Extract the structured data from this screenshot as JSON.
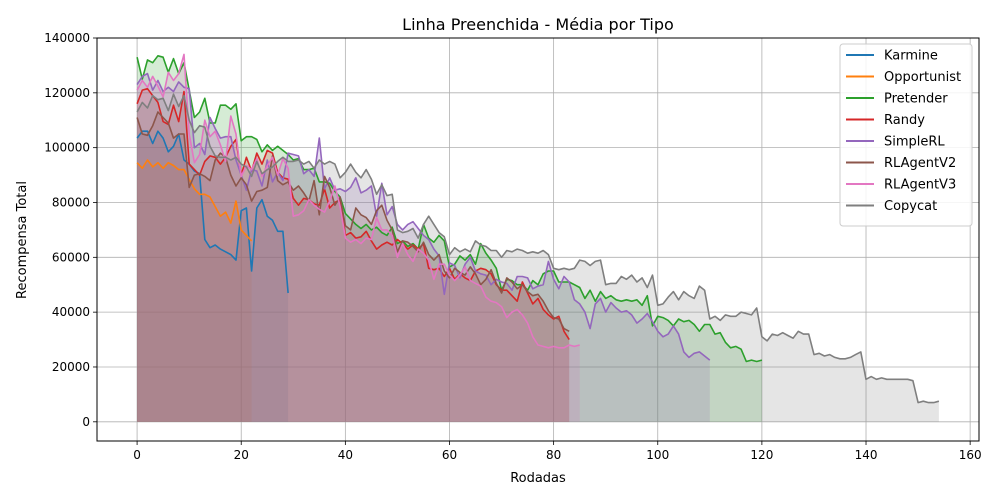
{
  "chart_data": {
    "type": "area",
    "title": "Linha Preenchida - Média por Tipo",
    "xlabel": "Rodadas",
    "ylabel": "Recompensa Total",
    "xlim": [
      -7.7,
      161.7
    ],
    "ylim": [
      -7000,
      140000
    ],
    "xticks": [
      0,
      20,
      40,
      60,
      80,
      100,
      120,
      140,
      160
    ],
    "yticks": [
      0,
      20000,
      40000,
      60000,
      80000,
      100000,
      120000,
      140000
    ],
    "grid": true,
    "legend_position": "upper-right",
    "series": [
      {
        "name": "Karmine",
        "color": "#1f77b4",
        "x_start": 0,
        "values": [
          103500,
          106000,
          106000,
          101500,
          106000,
          103500,
          98500,
          100500,
          105000,
          95500,
          94000,
          91500,
          90500,
          66500,
          63500,
          64500,
          63000,
          62000,
          61000,
          59000,
          77000,
          78000,
          55000,
          78000,
          81000,
          75000,
          73500,
          69500,
          69500,
          47000
        ]
      },
      {
        "name": "Opportunist",
        "color": "#ff7f0e",
        "x_start": 0,
        "values": [
          94500,
          92500,
          95500,
          93000,
          94500,
          92500,
          94500,
          93500,
          92000,
          92000,
          88500,
          85000,
          83000,
          83000,
          82000,
          78500,
          75000,
          76500,
          72500,
          80500,
          70000,
          68000,
          66000
        ]
      },
      {
        "name": "Pretender",
        "color": "#2ca02c",
        "x_start": 0,
        "values": [
          133000,
          125000,
          132000,
          131000,
          133500,
          133000,
          127500,
          132500,
          127000,
          131000,
          121000,
          111000,
          113000,
          118000,
          109000,
          109000,
          115500,
          115500,
          114000,
          116000,
          102500,
          104000,
          104000,
          103000,
          98500,
          101000,
          99000,
          100500,
          99000,
          97500,
          95500,
          96000,
          92000,
          92000,
          92500,
          87500,
          87500,
          87000,
          84000,
          82000,
          76000,
          74000,
          72000,
          70500,
          72000,
          70000,
          71000,
          69000,
          68000,
          71000,
          65000,
          66000,
          64000,
          65000,
          63000,
          72000,
          67000,
          65500,
          68000,
          66000,
          56500,
          57500,
          60500,
          59000,
          61000,
          57500,
          65000,
          61500,
          59000,
          56000,
          48000,
          52000,
          51500,
          50000,
          50000,
          48000,
          51500,
          50000,
          54000,
          55000,
          55000,
          51000,
          51000,
          51000,
          50000,
          49000,
          45000,
          48000,
          44000,
          47500,
          45000,
          46000,
          44500,
          44000,
          44500,
          44000,
          44500,
          42500,
          46000,
          35000,
          38500,
          38000,
          37000,
          35000,
          37500,
          36500,
          37000,
          35500,
          33000,
          35500,
          35500,
          32000,
          32500,
          29000,
          27000,
          27500,
          26500,
          22000,
          22500,
          22000,
          22500
        ]
      },
      {
        "name": "Randy",
        "color": "#d62728",
        "x_start": 0,
        "values": [
          116000,
          121000,
          121500,
          119000,
          116500,
          109500,
          108500,
          115500,
          109500,
          120500,
          94000,
          92000,
          90000,
          95000,
          97000,
          96500,
          94000,
          96500,
          100500,
          103000,
          90000,
          96500,
          91500,
          98000,
          94000,
          99000,
          98000,
          91000,
          89000,
          88500,
          81500,
          79000,
          81500,
          81000,
          79500,
          79000,
          85000,
          78000,
          80000,
          81000,
          68000,
          69000,
          67000,
          67500,
          69500,
          66000,
          63000,
          64500,
          65500,
          64500,
          66500,
          65000,
          63000,
          64500,
          63000,
          65000,
          56000,
          55500,
          56000,
          53000,
          56000,
          52000,
          54000,
          52500,
          51500,
          55000,
          56000,
          55500,
          54000,
          50000,
          48000,
          48000,
          46000,
          44000,
          51000,
          47000,
          43000,
          45000,
          41000,
          39000,
          37500,
          38500,
          33000,
          30000
        ]
      },
      {
        "name": "SimpleRL",
        "color": "#9467bd",
        "x_start": 0,
        "values": [
          123000,
          126000,
          127000,
          121000,
          124500,
          120500,
          122000,
          120500,
          124000,
          122000,
          121500,
          100000,
          101500,
          97500,
          111000,
          107000,
          103500,
          104000,
          104000,
          95500,
          90000,
          84500,
          92000,
          91500,
          86000,
          95500,
          87500,
          91000,
          88000,
          98000,
          97500,
          97000,
          90500,
          92000,
          89500,
          103500,
          85000,
          89000,
          84500,
          85000,
          84000,
          85500,
          89000,
          83500,
          84500,
          86000,
          75000,
          87000,
          75500,
          78500,
          72000,
          70000,
          72000,
          73000,
          70500,
          68000,
          66500,
          63000,
          60500,
          46500,
          58000,
          57000,
          52500,
          57500,
          60000,
          55000,
          54000,
          53500,
          50000,
          52000,
          51000,
          50500,
          48000,
          53000,
          53000,
          52500,
          48500,
          49500,
          50000,
          58500,
          52000,
          48500,
          53000,
          51000,
          44500,
          43000,
          40000,
          34000,
          43000,
          45000,
          40000,
          43500,
          41500,
          40000,
          40500,
          39000,
          36000,
          37500,
          39500,
          36500,
          33000,
          31000,
          32000,
          35000,
          32000,
          25500,
          23500,
          25000,
          25500,
          24000,
          22500
        ]
      },
      {
        "name": "RLAgentV2",
        "color": "#8c564b",
        "x_start": 0,
        "values": [
          111000,
          105000,
          104500,
          108000,
          113000,
          111000,
          109000,
          103500,
          105000,
          105000,
          85500,
          90000,
          90500,
          89500,
          88000,
          95500,
          98000,
          96500,
          90000,
          86000,
          89000,
          86500,
          80500,
          84000,
          84500,
          85500,
          97000,
          88000,
          86500,
          87500,
          84500,
          86000,
          83500,
          80500,
          88000,
          75500,
          89500,
          85500,
          79000,
          82000,
          71500,
          70000,
          78000,
          75500,
          74500,
          72000,
          77000,
          79000,
          73500,
          70000,
          62000,
          66000,
          65500,
          64000,
          62000,
          65500,
          61000,
          59000,
          61000,
          55000,
          52500,
          56000,
          54500,
          53500,
          56500,
          54000,
          50000,
          52000,
          55500,
          50500,
          47000,
          52500,
          51000,
          48500,
          50000,
          47500,
          46000,
          46500,
          44000,
          40500,
          38000,
          37500,
          34000,
          33000
        ]
      },
      {
        "name": "RLAgentV3",
        "color": "#e377c2",
        "x_start": 0,
        "values": [
          121000,
          124500,
          122000,
          126000,
          122500,
          118500,
          127500,
          124500,
          127000,
          134000,
          105000,
          94500,
          97500,
          110000,
          104000,
          106000,
          101000,
          95000,
          111500,
          105000,
          89500,
          93500,
          92000,
          96000,
          89500,
          93500,
          96500,
          90000,
          96000,
          92500,
          75000,
          75500,
          77000,
          81000,
          79000,
          77500,
          76500,
          80500,
          86000,
          78500,
          67000,
          65500,
          66500,
          65000,
          67000,
          66500,
          74500,
          70000,
          70000,
          68000,
          60000,
          65000,
          61000,
          58500,
          63000,
          61500,
          59000,
          52000,
          57500,
          57500,
          53500,
          51500,
          53500,
          56500,
          51500,
          50500,
          49500,
          45500,
          44000,
          43500,
          42000,
          38000,
          40000,
          41000,
          39000,
          36000,
          31000,
          28000,
          27500,
          27000,
          27500,
          27000,
          27000,
          28000,
          27500,
          28000
        ]
      },
      {
        "name": "Copycat",
        "color": "#7f7f7f",
        "x_start": 0,
        "values": [
          113000,
          116500,
          114500,
          119000,
          117500,
          118000,
          113500,
          119500,
          115000,
          119000,
          110000,
          105500,
          108000,
          107500,
          100500,
          97000,
          96500,
          96500,
          95500,
          96500,
          94000,
          93000,
          89500,
          95000,
          90500,
          92000,
          93000,
          95000,
          96500,
          95000,
          95000,
          95500,
          94000,
          95000,
          92500,
          95500,
          94000,
          95000,
          94000,
          89000,
          91000,
          94000,
          91000,
          89000,
          92000,
          88500,
          83000,
          86500,
          82500,
          83000,
          70000,
          69000,
          69500,
          70500,
          67000,
          72000,
          75000,
          72000,
          69000,
          67500,
          61000,
          63500,
          62000,
          63000,
          62000,
          66000,
          64500,
          64000,
          62500,
          62500,
          60000,
          62500,
          62000,
          63000,
          62500,
          61500,
          62000,
          61500,
          62500,
          61000,
          56000,
          55500,
          56000,
          55500,
          56000,
          59000,
          58500,
          57000,
          58500,
          59000,
          50000,
          50500,
          50500,
          53000,
          52000,
          53500,
          51000,
          52500,
          49000,
          53500,
          42500,
          43000,
          45500,
          47500,
          44500,
          47500,
          46000,
          45000,
          49500,
          48000,
          37500,
          38500,
          37000,
          39000,
          38500,
          38500,
          40000,
          39500,
          39000,
          41500,
          31000,
          29500,
          32000,
          31500,
          32500,
          31500,
          30500,
          33000,
          32000,
          32000,
          24500,
          25000,
          24000,
          24500,
          23500,
          23000,
          23000,
          23500,
          24500,
          25500,
          15500,
          16500,
          15500,
          16000,
          15500,
          15500,
          15500,
          15500,
          15500,
          15000,
          7000,
          7500,
          7000,
          7000,
          7500
        ]
      }
    ]
  }
}
